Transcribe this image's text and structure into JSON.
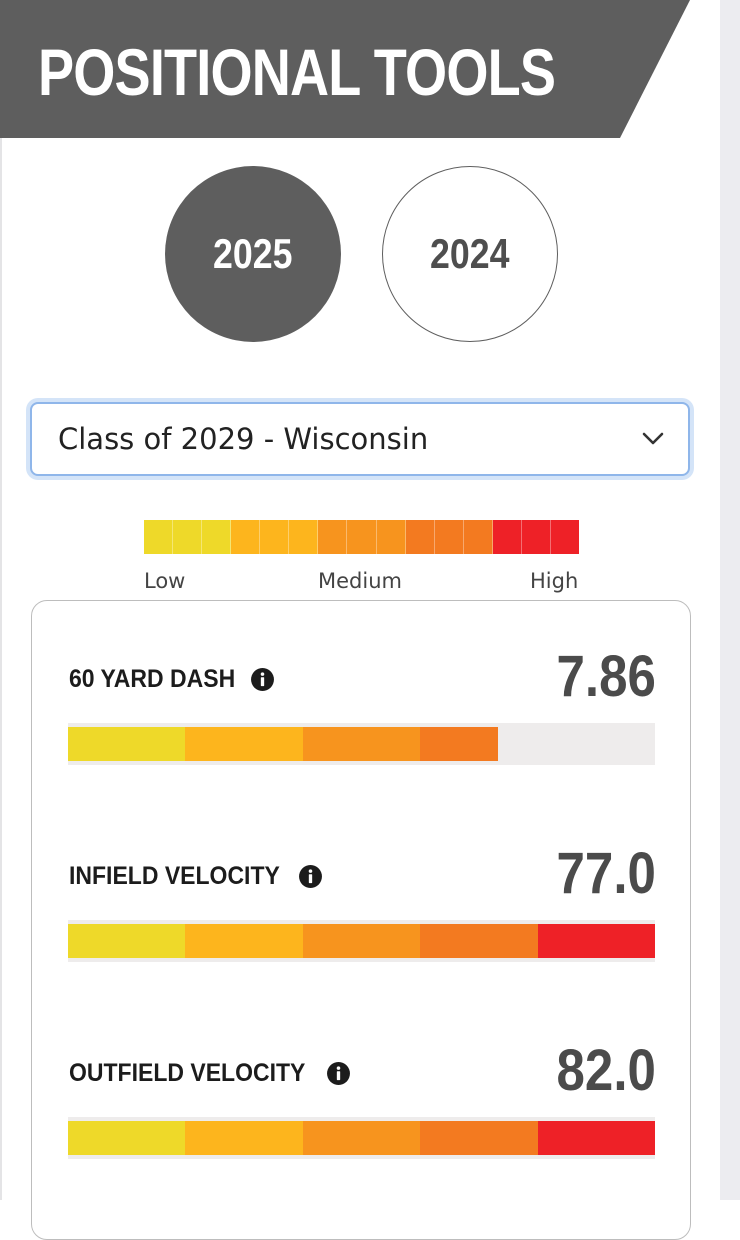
{
  "header": {
    "title": "POSITIONAL TOOLS"
  },
  "year_tabs": [
    {
      "label": "2025",
      "active": true
    },
    {
      "label": "2024",
      "active": false
    }
  ],
  "class_select": {
    "value": "Class of 2029 - Wisconsin"
  },
  "legend": {
    "low": "Low",
    "medium": "Medium",
    "high": "High",
    "colors": [
      "#eed929",
      "#eed929",
      "#eed929",
      "#fdb51d",
      "#fdb51d",
      "#fdb51d",
      "#f7941e",
      "#f7941e",
      "#f7941e",
      "#f37a20",
      "#f37a20",
      "#f37a20",
      "#ee2127",
      "#ee2127",
      "#ee2127"
    ]
  },
  "bar_colors": [
    "#eed929",
    "#fdb51d",
    "#f7941e",
    "#f37a20",
    "#ee2127"
  ],
  "metrics": [
    {
      "label": "60 YARD DASH",
      "value": "7.86",
      "level_fraction": 0.733,
      "icon": "info-icon"
    },
    {
      "label": "INFIELD VELOCITY",
      "value": "77.0",
      "level_fraction": 1.0,
      "icon": "info-icon"
    },
    {
      "label": "OUTFIELD VELOCITY",
      "value": "82.0",
      "level_fraction": 1.0,
      "icon": "info-icon"
    }
  ]
}
